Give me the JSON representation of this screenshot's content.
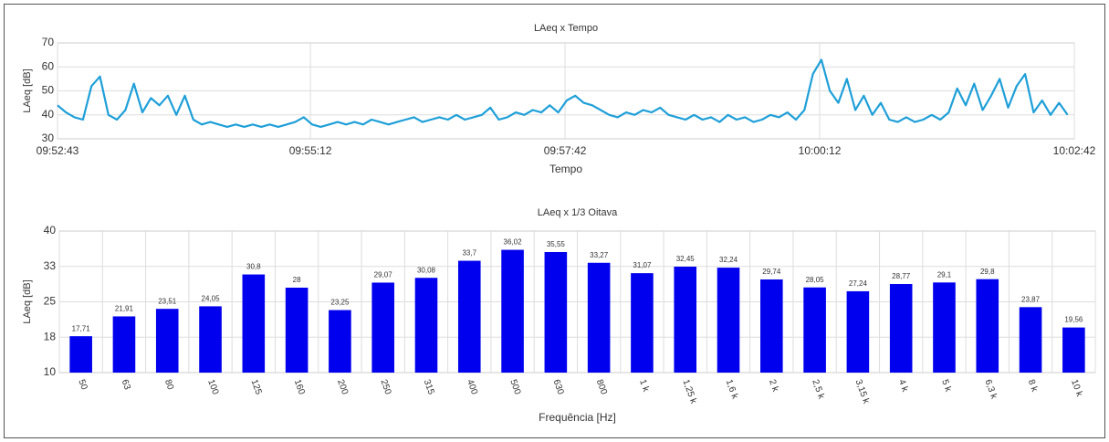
{
  "chart_data": [
    {
      "type": "line",
      "title": "LAeq x Tempo",
      "x_label": "Tempo",
      "y_label": "LAeq [dB]",
      "color": "#1e9fd8",
      "grid": true,
      "x": [
        35563,
        35568,
        35573,
        35578,
        35583,
        35588,
        35593,
        35598,
        35603,
        35608,
        35613,
        35618,
        35623,
        35628,
        35633,
        35638,
        35643,
        35648,
        35653,
        35658,
        35663,
        35668,
        35673,
        35678,
        35683,
        35688,
        35693,
        35698,
        35703,
        35708,
        35713,
        35718,
        35723,
        35728,
        35733,
        35738,
        35743,
        35748,
        35753,
        35758,
        35763,
        35768,
        35773,
        35778,
        35783,
        35788,
        35793,
        35798,
        35803,
        35808,
        35813,
        35818,
        35823,
        35828,
        35833,
        35838,
        35843,
        35848,
        35853,
        35858,
        35863,
        35868,
        35873,
        35878,
        35883,
        35888,
        35893,
        35898,
        35903,
        35908,
        35913,
        35918,
        35923,
        35928,
        35933,
        35938,
        35943,
        35948,
        35953,
        35958,
        35963,
        35968,
        35973,
        35978,
        35983,
        35988,
        35993,
        35998,
        36003,
        36008,
        36013,
        36018,
        36023,
        36028,
        36033,
        36038,
        36043,
        36048,
        36053,
        36058,
        36063,
        36068,
        36073,
        36078,
        36083,
        36088,
        36093,
        36098,
        36103,
        36108,
        36113,
        36118,
        36123,
        36128,
        36133,
        36138,
        36143,
        36148,
        36153,
        36158
      ],
      "values": [
        44,
        41,
        39,
        38,
        52,
        56,
        40,
        38,
        42,
        53,
        41,
        47,
        44,
        48,
        40,
        48,
        38,
        36,
        37,
        36,
        35,
        36,
        35,
        36,
        35,
        36,
        35,
        36,
        37,
        39,
        36,
        35,
        36,
        37,
        36,
        37,
        36,
        38,
        37,
        36,
        37,
        38,
        39,
        37,
        38,
        39,
        38,
        40,
        38,
        39,
        40,
        43,
        38,
        39,
        41,
        40,
        42,
        41,
        44,
        41,
        46,
        48,
        45,
        44,
        42,
        40,
        39,
        41,
        40,
        42,
        41,
        43,
        40,
        39,
        38,
        40,
        38,
        39,
        37,
        40,
        38,
        39,
        37,
        38,
        40,
        39,
        41,
        38,
        42,
        57,
        63,
        50,
        45,
        55,
        42,
        48,
        40,
        45,
        38,
        37,
        39,
        37,
        38,
        40,
        38,
        41,
        51,
        44,
        53,
        42,
        48,
        55,
        43,
        52,
        57,
        41,
        46,
        40,
        45,
        40
      ],
      "xlim": [
        35563,
        36162
      ],
      "xticks": [
        {
          "value": 35563,
          "label": "09:52:43"
        },
        {
          "value": 35712,
          "label": "09:55:12"
        },
        {
          "value": 35862,
          "label": "09:57:42"
        },
        {
          "value": 36012,
          "label": "10:00:12"
        },
        {
          "value": 36162,
          "label": "10:02:42"
        }
      ],
      "ylim": [
        30,
        70
      ],
      "yticks": [
        30,
        40,
        50,
        60,
        70
      ]
    },
    {
      "type": "bar",
      "title": "LAeq x 1/3 Oitava",
      "x_label": "Frequência [Hz]",
      "y_label": "LAeq [dB]",
      "color": "#0000ee",
      "grid": true,
      "categories": [
        "50",
        "63",
        "80",
        "100",
        "125",
        "160",
        "200",
        "250",
        "315",
        "400",
        "500",
        "630",
        "800",
        "1 k",
        "1,25 k",
        "1,6 k",
        "2 k",
        "2,5 k",
        "3,15 k",
        "4 k",
        "5 k",
        "6,3 k",
        "8 k",
        "10 k"
      ],
      "values": [
        17.71,
        21.91,
        23.51,
        24.05,
        30.8,
        28,
        23.25,
        29.07,
        30.08,
        33.7,
        36.02,
        35.55,
        33.27,
        31.07,
        32.45,
        32.24,
        29.74,
        28.05,
        27.24,
        28.77,
        29.1,
        29.8,
        23.87,
        19.56
      ],
      "value_labels": [
        "17,71",
        "21,91",
        "23,51",
        "24,05",
        "30,8",
        "28",
        "23,25",
        "29,07",
        "30,08",
        "33,7",
        "36,02",
        "35,55",
        "33,27",
        "31,07",
        "32,45",
        "32,24",
        "29,74",
        "28,05",
        "27,24",
        "28,77",
        "29,1",
        "29,8",
        "23,87",
        "19,56"
      ],
      "ylim": [
        10,
        40
      ],
      "yticks": [
        10,
        {
          "value": 17.5,
          "label": "18"
        },
        25,
        {
          "value": 32.5,
          "label": "33"
        },
        40
      ]
    }
  ]
}
